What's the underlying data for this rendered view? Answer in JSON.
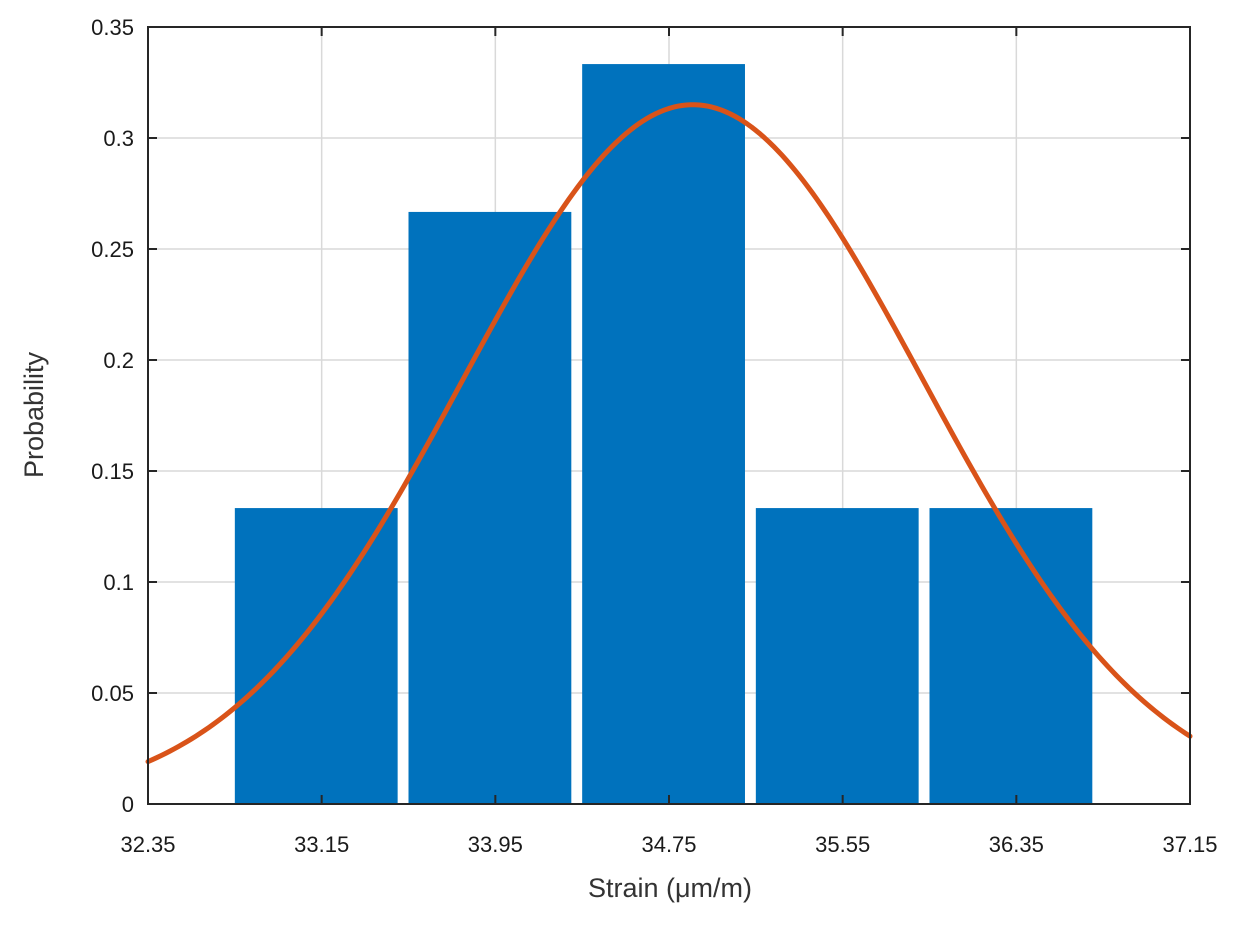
{
  "chart_data": {
    "type": "bar",
    "xlabel": "Strain (μm/m)",
    "ylabel": "Probability",
    "xlim": [
      32.35,
      37.15
    ],
    "ylim": [
      0,
      0.35
    ],
    "x_ticks": [
      "32.35",
      "33.15",
      "33.95",
      "34.75",
      "35.55",
      "36.35",
      "37.15"
    ],
    "y_ticks": [
      "0",
      "0.05",
      "0.1",
      "0.15",
      "0.2",
      "0.25",
      "0.3",
      "0.35"
    ],
    "grid": true,
    "bins": [
      {
        "from": 32.75,
        "to": 33.5,
        "value": 0.1333
      },
      {
        "from": 33.55,
        "to": 34.3,
        "value": 0.2667
      },
      {
        "from": 34.35,
        "to": 35.1,
        "value": 0.3333
      },
      {
        "from": 35.15,
        "to": 35.9,
        "value": 0.1333
      },
      {
        "from": 35.95,
        "to": 36.7,
        "value": 0.1333
      }
    ],
    "fit_curve": {
      "type": "normal",
      "mean": 34.86,
      "sigma": 1.06,
      "peak": 0.315
    },
    "colors": {
      "bars": "#0072bd",
      "fit": "#d95319",
      "grid": "#d9d9d9",
      "axis": "#262626"
    }
  }
}
